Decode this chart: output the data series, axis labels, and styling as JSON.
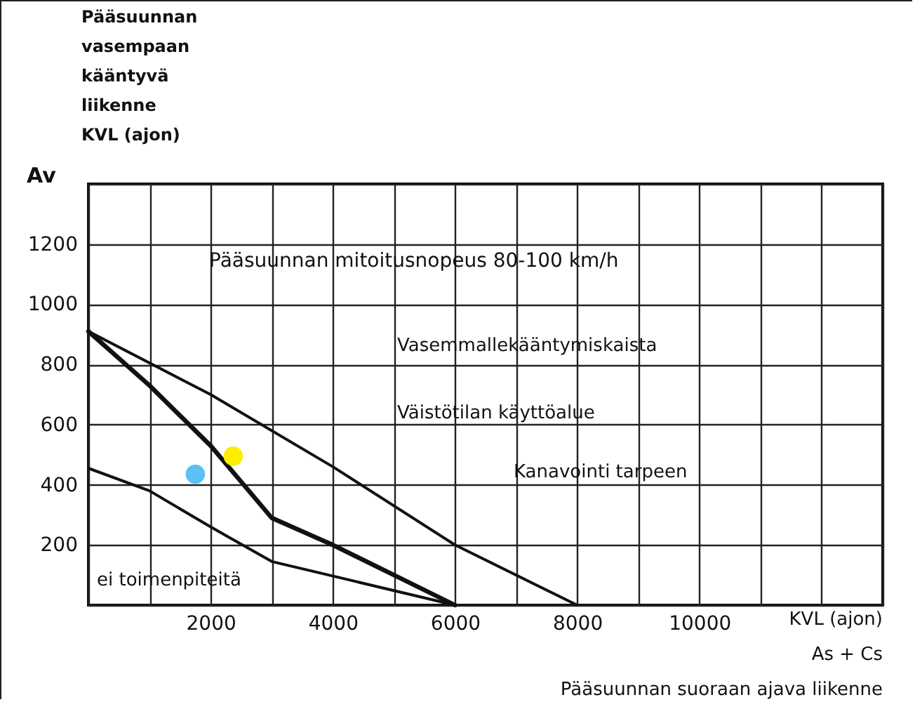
{
  "chart_data": {
    "type": "line",
    "xlabel": "KVL (ajon)\nAs + Cs\nPääsuunnan suoraan ajava liikenne",
    "ylabel": "Pääsuunnan\nvasempaan\nkääntyvä\nliikenne\nKVL (ajon)",
    "annotations": [
      "Av",
      "Pääsuunnan mitoitusnopeus 80-100 km/h",
      "Vasemmallekääntymiskaista",
      "Väistötilan käyttöalue",
      "Kanavointi tarpeen",
      "ei toimenpiteitä"
    ],
    "xlim": [
      0,
      13000
    ],
    "ylim": [
      0,
      1400
    ],
    "xticks": [
      {
        "value": 0,
        "label": null
      },
      {
        "value": 1000,
        "label": null
      },
      2000,
      {
        "value": 3000,
        "label": null
      },
      4000,
      {
        "value": 5000,
        "label": null
      },
      6000,
      {
        "value": 7000,
        "label": null
      },
      8000,
      {
        "value": 9000,
        "label": null
      },
      10000,
      {
        "value": 11000,
        "label": null
      },
      {
        "value": 12000,
        "label": null
      },
      {
        "value": 13000,
        "label": null
      }
    ],
    "yticks": [
      {
        "value": 0,
        "label": null
      },
      200,
      400,
      600,
      800,
      1000,
      1200,
      {
        "value": 1400,
        "label": null
      }
    ],
    "grid": true,
    "series": [
      {
        "color": "#111111",
        "x": [
          0,
          2000,
          4000,
          6000,
          8000
        ],
        "values": [
          910,
          700,
          460,
          200,
          0
        ]
      },
      {
        "color": "#111111",
        "x": [
          0,
          1000,
          2000,
          2500,
          3000,
          4000,
          6000
        ],
        "values": [
          910,
          730,
          530,
          410,
          290,
          200,
          0
        ]
      },
      {
        "color": "#111111",
        "x": [
          0,
          1000,
          2000,
          3000,
          6000
        ],
        "values": [
          455,
          380,
          260,
          145,
          0
        ]
      },
      {
        "type": "scatter",
        "color": "#5bc0f5",
        "marker": "circle",
        "x": [
          1750
        ],
        "values": [
          435
        ]
      },
      {
        "type": "scatter",
        "color": "#ffee00",
        "marker": "circle",
        "x": [
          2370
        ],
        "values": [
          495
        ]
      }
    ]
  }
}
